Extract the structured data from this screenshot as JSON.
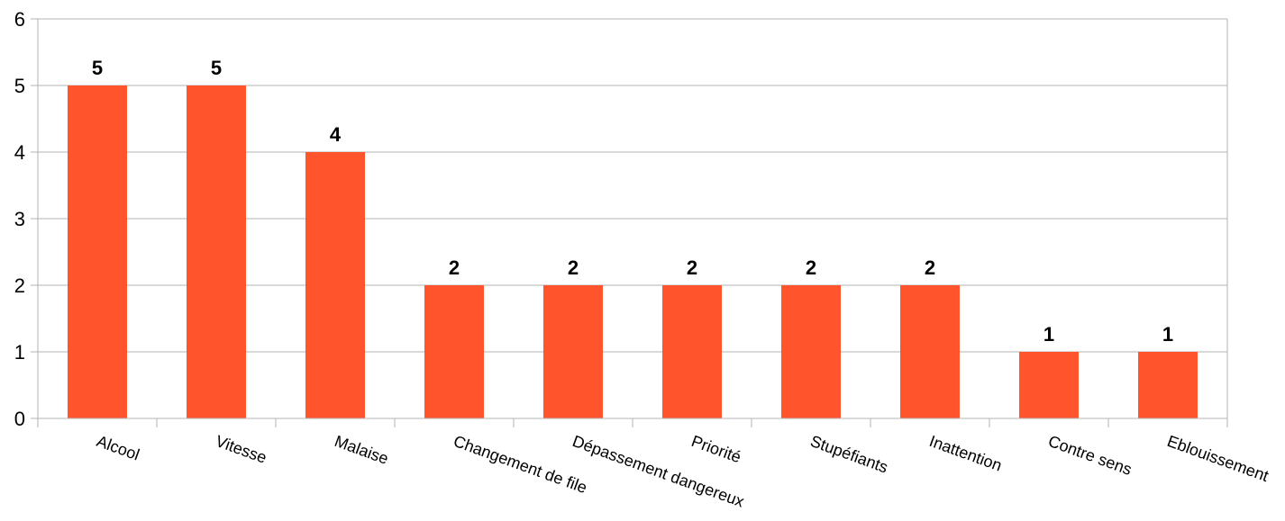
{
  "chart_data": {
    "type": "bar",
    "categories": [
      "Alcool",
      "Vitesse",
      "Malaise",
      "Changement de file",
      "Dépassement dangereux",
      "Priorité",
      "Stupéfiants",
      "Inattention",
      "Contre sens",
      "Eblouissement"
    ],
    "values": [
      5,
      5,
      4,
      2,
      2,
      2,
      2,
      2,
      1,
      1
    ],
    "title": "",
    "xlabel": "",
    "ylabel": "",
    "ylim": [
      0,
      6
    ],
    "yticks": [
      0,
      1,
      2,
      3,
      4,
      5,
      6
    ],
    "grid": true,
    "legend": "none",
    "bar_color": "#ff542c",
    "data_labels": true
  }
}
